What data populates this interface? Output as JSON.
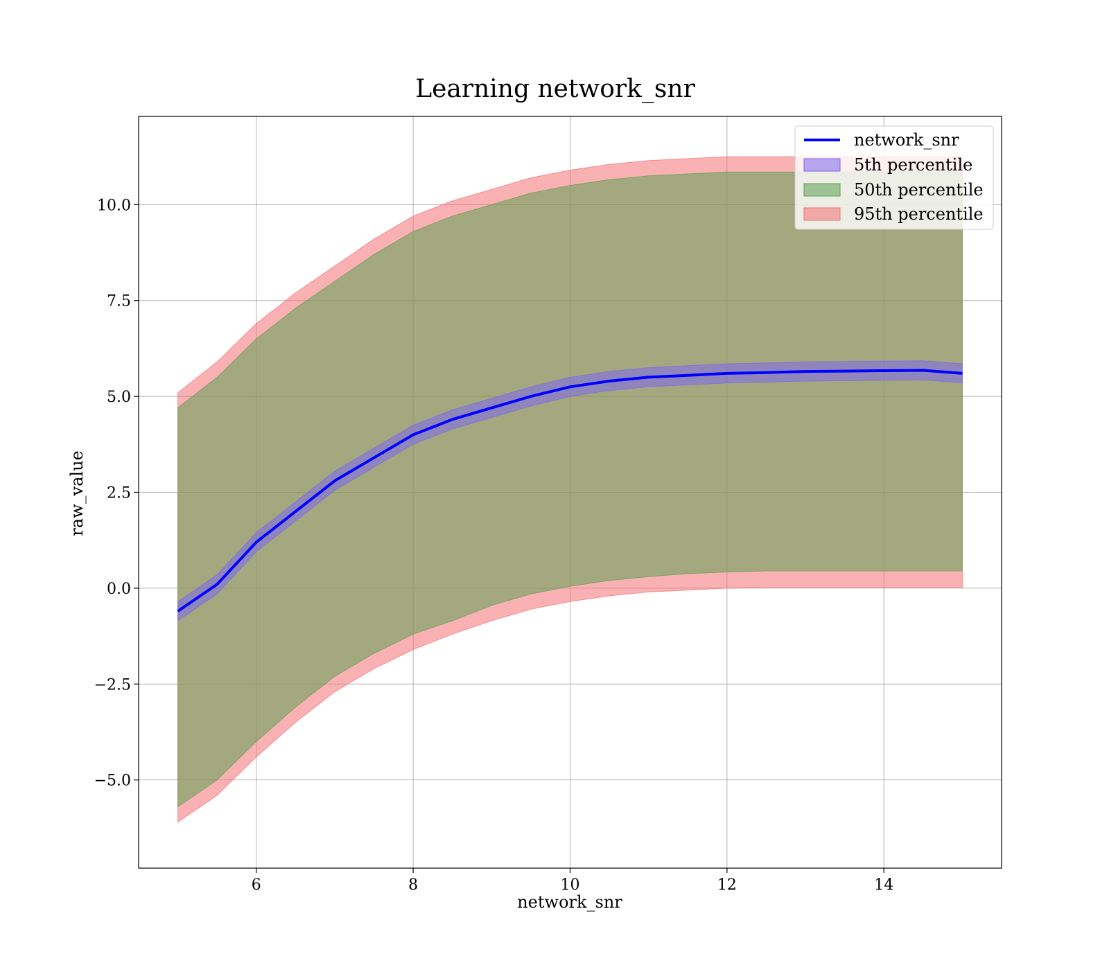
{
  "chart_data": {
    "type": "area",
    "title": "Learning network_snr",
    "xlabel": "network_snr",
    "ylabel": "raw_value",
    "xlim": [
      4.5,
      15.5
    ],
    "ylim": [
      -7.3,
      12.3
    ],
    "xticks": [
      6,
      8,
      10,
      12,
      14
    ],
    "xtick_labels": [
      "6",
      "8",
      "10",
      "12",
      "14"
    ],
    "yticks": [
      -5.0,
      -2.5,
      0.0,
      2.5,
      5.0,
      7.5,
      10.0
    ],
    "ytick_labels": [
      "−5.0",
      "−2.5",
      "0.0",
      "2.5",
      "5.0",
      "7.5",
      "10.0"
    ],
    "grid": true,
    "legend_position": "top-right",
    "x": [
      5.0,
      5.5,
      6.0,
      6.5,
      7.0,
      7.5,
      8.0,
      8.5,
      9.0,
      9.5,
      10.0,
      10.5,
      11.0,
      11.5,
      12.0,
      12.5,
      13.0,
      13.5,
      14.0,
      14.5,
      15.0
    ],
    "series": [
      {
        "name": "network_snr",
        "kind": "line",
        "color": "#0000ff",
        "values": [
          -0.6,
          0.1,
          1.2,
          2.0,
          2.8,
          3.4,
          4.0,
          4.4,
          4.7,
          5.0,
          5.25,
          5.4,
          5.5,
          5.55,
          5.6,
          5.62,
          5.65,
          5.66,
          5.67,
          5.68,
          5.6
        ]
      },
      {
        "name": "5th percentile",
        "kind": "band",
        "color": "#7b68ee",
        "lower": [
          -0.85,
          -0.15,
          0.95,
          1.75,
          2.55,
          3.15,
          3.75,
          4.15,
          4.45,
          4.75,
          5.0,
          5.15,
          5.25,
          5.3,
          5.35,
          5.37,
          5.4,
          5.41,
          5.42,
          5.43,
          5.35
        ],
        "upper": [
          -0.35,
          0.35,
          1.45,
          2.25,
          3.05,
          3.65,
          4.25,
          4.65,
          4.95,
          5.25,
          5.5,
          5.65,
          5.75,
          5.8,
          5.85,
          5.87,
          5.9,
          5.91,
          5.92,
          5.93,
          5.85
        ]
      },
      {
        "name": "50th percentile",
        "kind": "band",
        "color": "#5fa052",
        "lower": [
          -5.7,
          -5.0,
          -4.0,
          -3.1,
          -2.3,
          -1.7,
          -1.2,
          -0.85,
          -0.45,
          -0.15,
          0.05,
          0.2,
          0.3,
          0.38,
          0.42,
          0.45,
          0.45,
          0.45,
          0.45,
          0.45,
          0.45
        ],
        "upper": [
          4.7,
          5.5,
          6.5,
          7.3,
          8.0,
          8.7,
          9.3,
          9.7,
          10.0,
          10.3,
          10.5,
          10.65,
          10.75,
          10.8,
          10.85,
          10.85,
          10.85,
          10.85,
          10.85,
          10.85,
          10.85
        ]
      },
      {
        "name": "95th percentile",
        "kind": "band",
        "color": "#f47174",
        "lower": [
          -6.1,
          -5.4,
          -4.4,
          -3.5,
          -2.7,
          -2.1,
          -1.6,
          -1.2,
          -0.85,
          -0.55,
          -0.35,
          -0.2,
          -0.1,
          -0.05,
          0.0,
          0.02,
          0.02,
          0.02,
          0.02,
          0.02,
          0.02
        ],
        "upper": [
          5.1,
          5.9,
          6.9,
          7.7,
          8.4,
          9.1,
          9.7,
          10.1,
          10.4,
          10.7,
          10.9,
          11.05,
          11.15,
          11.2,
          11.25,
          11.25,
          11.25,
          11.25,
          11.25,
          11.25,
          11.25
        ]
      }
    ]
  }
}
